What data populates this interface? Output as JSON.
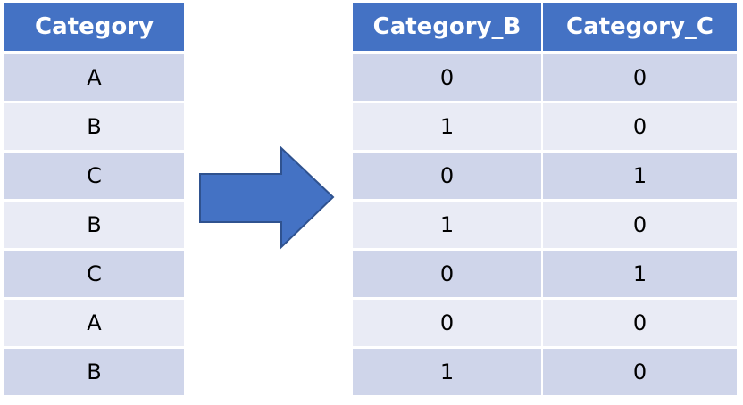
{
  "input_table": {
    "header": "Category",
    "rows": [
      "A",
      "B",
      "C",
      "B",
      "C",
      "A",
      "B"
    ]
  },
  "output_table": {
    "headers": [
      "Category_B",
      "Category_C"
    ],
    "rows": [
      [
        "0",
        "0"
      ],
      [
        "1",
        "0"
      ],
      [
        "0",
        "1"
      ],
      [
        "1",
        "0"
      ],
      [
        "0",
        "1"
      ],
      [
        "0",
        "0"
      ],
      [
        "1",
        "0"
      ]
    ]
  },
  "arrow": {
    "icon": "right-arrow-icon",
    "fill": "#4472c4",
    "stroke": "#2f528f"
  },
  "colors": {
    "header_bg": "#4472c4",
    "header_text": "#ffffff",
    "row_odd": "#cfd5ea",
    "row_even": "#e9ebf5"
  }
}
